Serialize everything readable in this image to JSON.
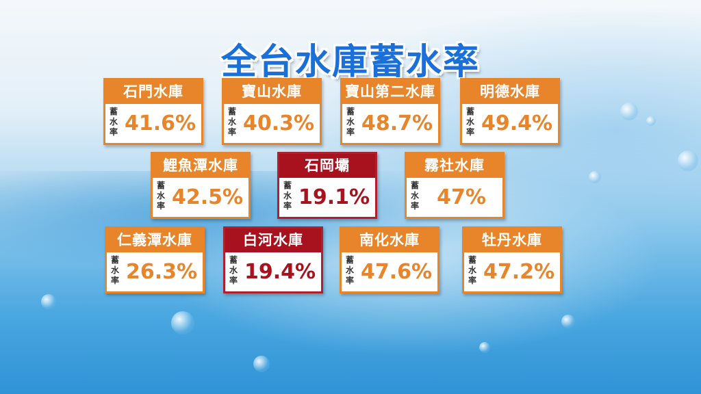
{
  "title": "全台水庫蓄水率",
  "rate_label": "蓄水率",
  "colors": {
    "normal": "#e8852a",
    "low": "#a8121e",
    "title": "#1a6fd8"
  },
  "reservoirs": [
    {
      "name": "石門水庫",
      "rate": "41.6%",
      "status": "normal"
    },
    {
      "name": "寶山水庫",
      "rate": "40.3%",
      "status": "normal"
    },
    {
      "name": "寶山第二水庫",
      "rate": "48.7%",
      "status": "normal"
    },
    {
      "name": "明德水庫",
      "rate": "49.4%",
      "status": "normal"
    },
    {
      "name": "鯉魚潭水庫",
      "rate": "42.5%",
      "status": "normal"
    },
    {
      "name": "石岡壩",
      "rate": "19.1%",
      "status": "low"
    },
    {
      "name": "霧社水庫",
      "rate": "47%",
      "status": "normal"
    },
    {
      "name": "仁義潭水庫",
      "rate": "26.3%",
      "status": "normal"
    },
    {
      "name": "白河水庫",
      "rate": "19.4%",
      "status": "low"
    },
    {
      "name": "南化水庫",
      "rate": "47.6%",
      "status": "normal"
    },
    {
      "name": "牡丹水庫",
      "rate": "47.2%",
      "status": "normal"
    }
  ]
}
